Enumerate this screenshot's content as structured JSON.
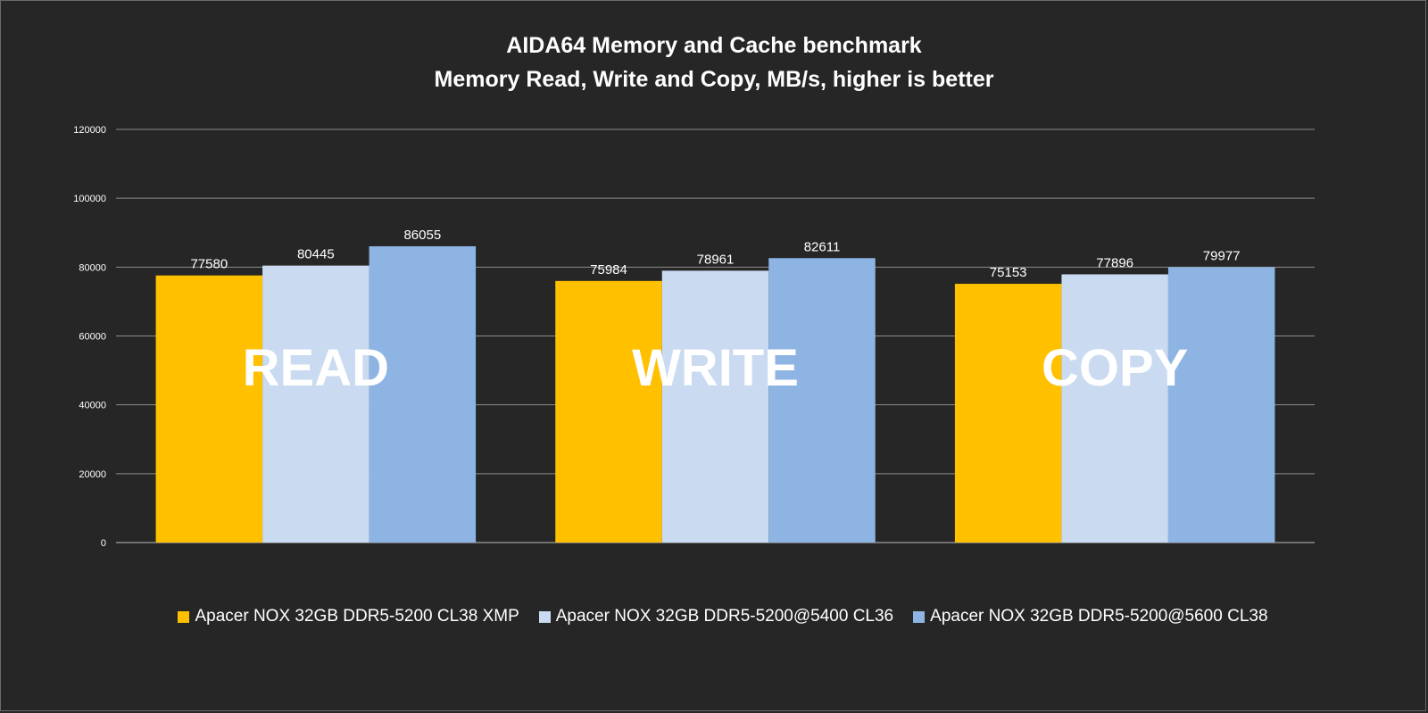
{
  "chart_data": {
    "type": "bar",
    "title": "AIDA64 Memory and Cache benchmark",
    "subtitle": "Memory Read, Write and Copy, MB/s, higher is better",
    "categories": [
      "READ",
      "WRITE",
      "COPY"
    ],
    "series": [
      {
        "name": "Apacer NOX 32GB DDR5-5200 CL38 XMP",
        "color": "#ffc000",
        "values": [
          77580,
          75984,
          75153
        ]
      },
      {
        "name": "Apacer NOX 32GB DDR5-5200@5400 CL36",
        "color": "#c9daf1",
        "values": [
          80445,
          78961,
          77896
        ]
      },
      {
        "name": "Apacer NOX 32GB DDR5-5200@5600 CL38",
        "color": "#8eb4e3",
        "values": [
          86055,
          82611,
          79977
        ]
      }
    ],
    "ylim": [
      0,
      120000
    ],
    "yticks": [
      0,
      20000,
      40000,
      60000,
      80000,
      100000,
      120000
    ],
    "grid": true,
    "legend_position": "bottom",
    "background": "#262626"
  }
}
